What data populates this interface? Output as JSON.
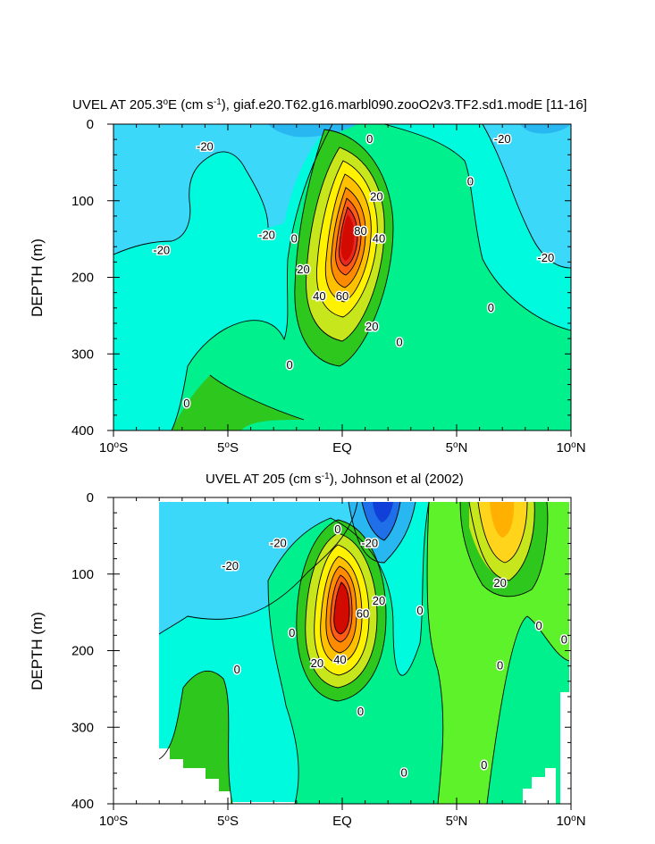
{
  "chart_data": [
    {
      "type": "contour",
      "title_main": "UVEL AT 205.3",
      "title_deg": "o",
      "title_mid": "E (cm s",
      "title_exp": "-1",
      "title_end": "), giaf.e20.T62.g16.marbl090.zooO2v3.TF2.sd1.modE [11-16]",
      "ylabel": "DEPTH (m)",
      "xlim": [
        -10,
        10
      ],
      "ylim": [
        0,
        400
      ],
      "yticks": [
        {
          "value": 0,
          "label": "0"
        },
        {
          "value": 100,
          "label": "100"
        },
        {
          "value": 200,
          "label": "200"
        },
        {
          "value": 300,
          "label": "300"
        },
        {
          "value": 400,
          "label": "400"
        }
      ],
      "xticks": [
        {
          "value": -10,
          "num": "10",
          "deg": "o",
          "hem": "S"
        },
        {
          "value": -5,
          "num": "5",
          "deg": "o",
          "hem": "S"
        },
        {
          "value": 0,
          "num": "EQ",
          "deg": "",
          "hem": ""
        },
        {
          "value": 5,
          "num": "5",
          "deg": "o",
          "hem": "N"
        },
        {
          "value": 10,
          "num": "10",
          "deg": "o",
          "hem": "N"
        }
      ],
      "colors": {
        "neg20": "#00fadd",
        "neg30": "#3cd8fa",
        "neg40": "#29b7f2",
        "zero": "#00f08e",
        "pos": "#2ec71e",
        "core": "#d20a00"
      },
      "contour_labels": [
        {
          "text": "-20",
          "x": -6,
          "depth": 30
        },
        {
          "text": "-20",
          "x": -7.9,
          "depth": 165
        },
        {
          "text": "-20",
          "x": -3.3,
          "depth": 145
        },
        {
          "text": "-20",
          "x": 7,
          "depth": 20
        },
        {
          "text": "-20",
          "x": 8.9,
          "depth": 175
        },
        {
          "text": "0",
          "x": -2.1,
          "depth": 150
        },
        {
          "text": "0",
          "x": 1.2,
          "depth": 20
        },
        {
          "text": "0",
          "x": 5.6,
          "depth": 75
        },
        {
          "text": "0",
          "x": 6.5,
          "depth": 240
        },
        {
          "text": "0",
          "x": 2.5,
          "depth": 285
        },
        {
          "text": "0",
          "x": -2.3,
          "depth": 315
        },
        {
          "text": "0",
          "x": -6.8,
          "depth": 365
        },
        {
          "text": "20",
          "x": 1.5,
          "depth": 95
        },
        {
          "text": "20",
          "x": -1.7,
          "depth": 190
        },
        {
          "text": "20",
          "x": 1.3,
          "depth": 265
        },
        {
          "text": "40",
          "x": -1.0,
          "depth": 225
        },
        {
          "text": "40",
          "x": 1.6,
          "depth": 150
        },
        {
          "text": "60",
          "x": 0,
          "depth": 225
        },
        {
          "text": "80",
          "x": 0.8,
          "depth": 140
        }
      ]
    },
    {
      "type": "contour",
      "title_main": "UVEL AT 205 (cm s",
      "title_exp": "-1",
      "title_end": "), Johnson et al (2002)",
      "ylabel": "DEPTH (m)",
      "xlim": [
        -10,
        10
      ],
      "ylim": [
        0,
        400
      ],
      "yticks": [
        {
          "value": 0,
          "label": "0"
        },
        {
          "value": 100,
          "label": "100"
        },
        {
          "value": 200,
          "label": "200"
        },
        {
          "value": 300,
          "label": "300"
        },
        {
          "value": 400,
          "label": "400"
        }
      ],
      "xticks": [
        {
          "value": -10,
          "num": "10",
          "deg": "o",
          "hem": "S"
        },
        {
          "value": -5,
          "num": "5",
          "deg": "o",
          "hem": "S"
        },
        {
          "value": 0,
          "num": "EQ",
          "deg": "",
          "hem": ""
        },
        {
          "value": 5,
          "num": "5",
          "deg": "o",
          "hem": "N"
        },
        {
          "value": 10,
          "num": "10",
          "deg": "o",
          "hem": "N"
        }
      ],
      "data_xlim": [
        -8,
        10
      ],
      "colors": {
        "neg20": "#00fadd",
        "neg30": "#3cd8fa",
        "neg40": "#29b7f2",
        "neg60": "#1f6fe8",
        "zero": "#00f08e",
        "pos": "#2ec71e",
        "jet": "#ffd41a",
        "core": "#d20a00"
      },
      "contour_labels": [
        {
          "text": "-20",
          "x": -4.9,
          "depth": 90
        },
        {
          "text": "-20",
          "x": -2.8,
          "depth": 60
        },
        {
          "text": "-20",
          "x": 1.2,
          "depth": 60
        },
        {
          "text": "0",
          "x": -0.2,
          "depth": 42
        },
        {
          "text": "0",
          "x": -2.2,
          "depth": 177
        },
        {
          "text": "0",
          "x": -4.6,
          "depth": 225
        },
        {
          "text": "0",
          "x": 0.8,
          "depth": 280
        },
        {
          "text": "0",
          "x": 3.4,
          "depth": 148
        },
        {
          "text": "0",
          "x": 6.9,
          "depth": 220
        },
        {
          "text": "0",
          "x": 8.6,
          "depth": 168
        },
        {
          "text": "0",
          "x": 9.7,
          "depth": 186
        },
        {
          "text": "0",
          "x": 6.2,
          "depth": 350
        },
        {
          "text": "0",
          "x": 2.7,
          "depth": 360
        },
        {
          "text": "20",
          "x": 1.6,
          "depth": 135
        },
        {
          "text": "20",
          "x": -1.1,
          "depth": 217
        },
        {
          "text": "20",
          "x": 6.9,
          "depth": 112
        },
        {
          "text": "40",
          "x": -0.1,
          "depth": 212
        },
        {
          "text": "60",
          "x": 0.9,
          "depth": 152
        }
      ]
    }
  ]
}
